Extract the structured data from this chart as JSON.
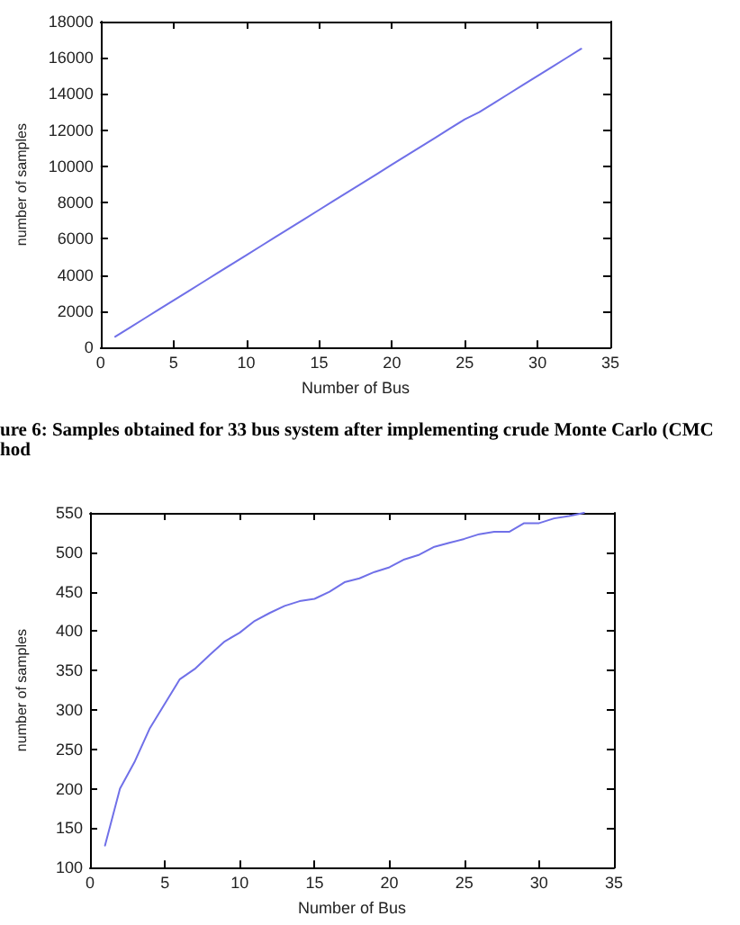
{
  "chart_data": [
    {
      "type": "line",
      "x": [
        1,
        2,
        3,
        4,
        5,
        6,
        7,
        8,
        9,
        10,
        11,
        12,
        13,
        14,
        15,
        16,
        17,
        18,
        19,
        20,
        21,
        22,
        23,
        24,
        25,
        26,
        27,
        28,
        29,
        30,
        31,
        32,
        33
      ],
      "values": [
        600,
        1100,
        1600,
        2100,
        2600,
        3100,
        3600,
        4100,
        4600,
        5100,
        5600,
        6100,
        6600,
        7100,
        7600,
        8100,
        8600,
        9100,
        9600,
        10100,
        10600,
        11100,
        11600,
        12100,
        12600,
        13000,
        13500,
        14000,
        14500,
        15000,
        15500,
        16000,
        16500
      ],
      "color": "#7070e8",
      "marker": "none",
      "xlabel": "Number of Bus",
      "ylabel": "number of samples",
      "xlim": [
        0,
        35
      ],
      "xticks": [
        0,
        5,
        10,
        15,
        20,
        25,
        30,
        35
      ],
      "ylim": [
        0,
        18000
      ],
      "yticks": [
        0,
        2000,
        4000,
        6000,
        8000,
        10000,
        12000,
        14000,
        16000,
        18000
      ],
      "annotations": [
        "ure 6: Samples obtained for 33 bus system after implementing crude Monte Carlo (CMC",
        "hod"
      ]
    },
    {
      "type": "line",
      "x": [
        1,
        2,
        3,
        4,
        5,
        6,
        7,
        8,
        9,
        10,
        11,
        12,
        13,
        14,
        15,
        16,
        17,
        18,
        19,
        20,
        21,
        22,
        23,
        24,
        25,
        26,
        27,
        28,
        29,
        30,
        31,
        32,
        33
      ],
      "values": [
        128,
        200,
        235,
        277,
        308,
        339,
        352,
        370,
        387,
        398,
        413,
        423,
        432,
        438,
        441,
        450,
        462,
        467,
        475,
        481,
        491,
        497,
        507,
        512,
        517,
        523,
        526,
        526,
        537,
        537,
        543,
        546,
        550
      ],
      "color": "#7070e8",
      "marker": "none",
      "xlabel": "Number of Bus",
      "ylabel": "number of samples",
      "xlim": [
        0,
        35
      ],
      "xticks": [
        0,
        5,
        10,
        15,
        20,
        25,
        30,
        35
      ],
      "ylim": [
        100,
        550
      ],
      "yticks": [
        100,
        150,
        200,
        250,
        300,
        350,
        400,
        450,
        500,
        550
      ]
    }
  ]
}
